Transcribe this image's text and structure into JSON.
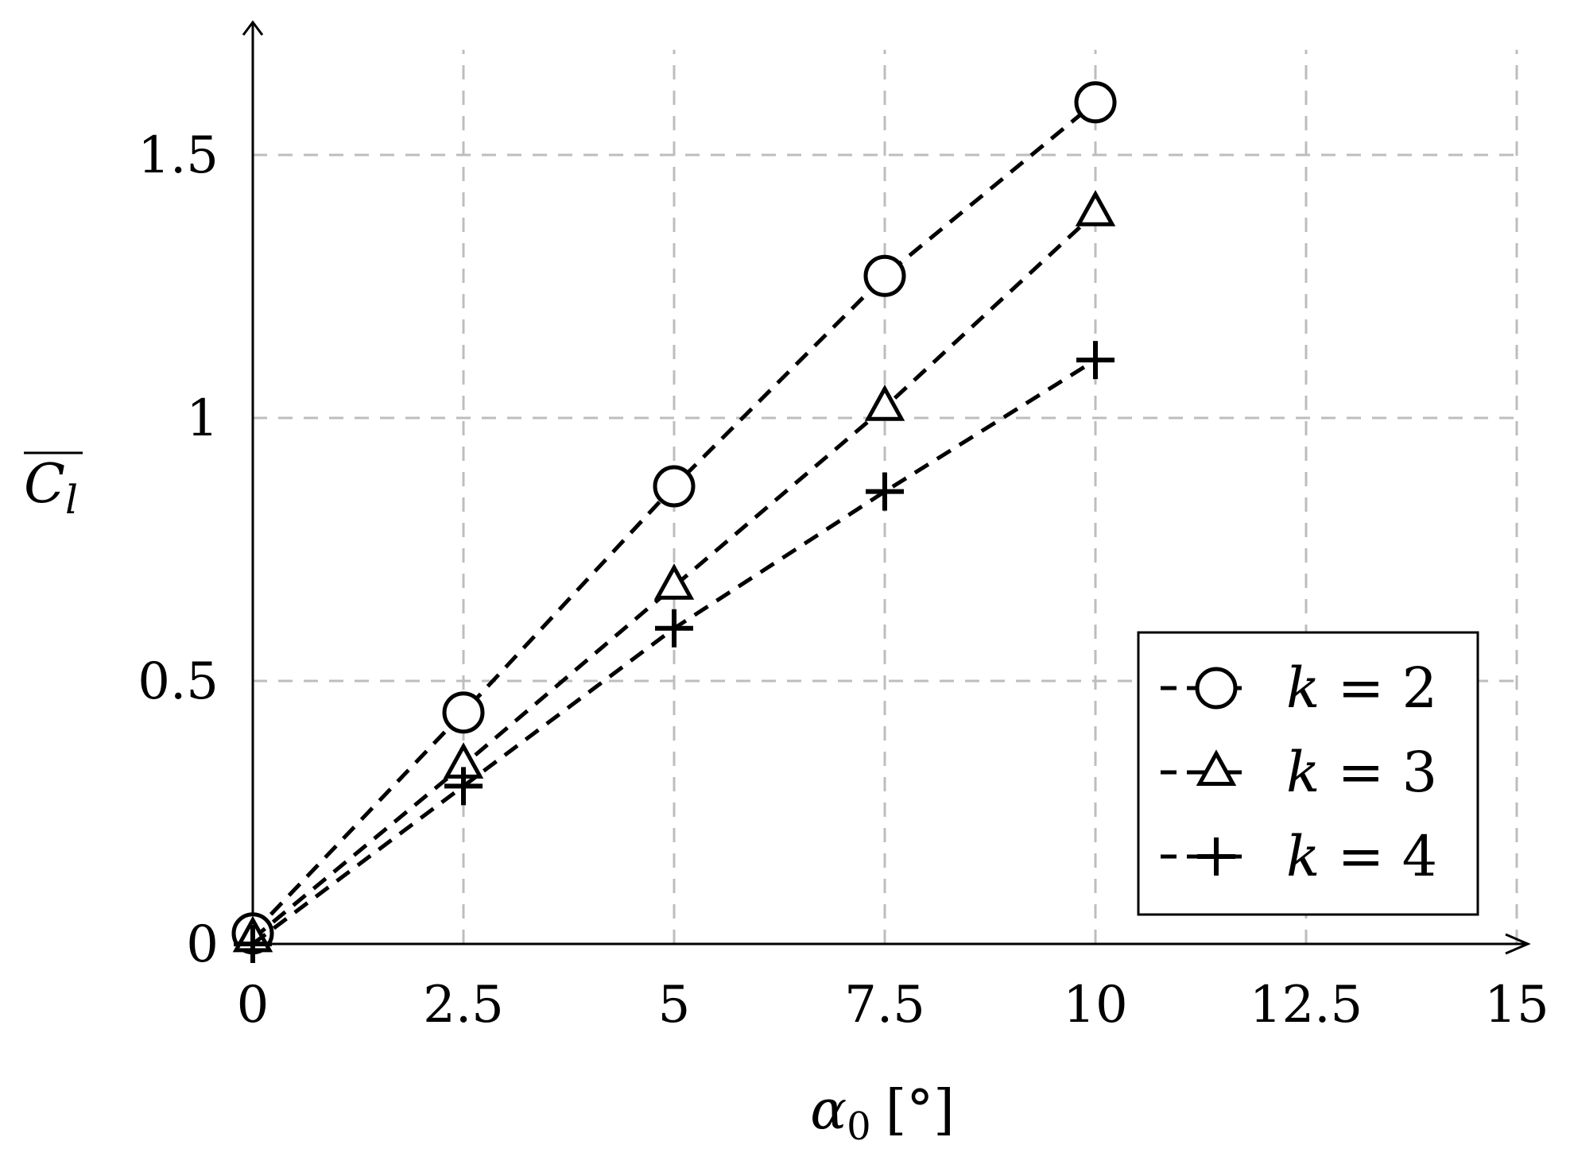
{
  "chart_data": {
    "type": "line",
    "x": [
      0,
      2.5,
      5,
      7.5,
      10
    ],
    "xlim": [
      0,
      15
    ],
    "ylim": [
      0,
      1.7
    ],
    "xticks": [
      0,
      2.5,
      5,
      7.5,
      10,
      12.5,
      15
    ],
    "yticks": [
      0,
      0.5,
      1,
      1.5
    ],
    "xtick_labels": [
      "0",
      "2.5",
      "5",
      "7.5",
      "10",
      "12.5",
      "15"
    ],
    "ytick_labels": [
      "0",
      "0.5",
      "1",
      "1.5"
    ],
    "xlabel_symbol": "α",
    "xlabel_sub": "0",
    "xlabel_unit": "[°]",
    "ylabel_main": "C",
    "ylabel_sub": "l",
    "grid": true,
    "legend_position": "bottom-right",
    "series": [
      {
        "name": "k = 2",
        "var": "k",
        "eq": " = 2",
        "marker": "circle",
        "values": [
          0.02,
          0.44,
          0.87,
          1.27,
          1.6
        ]
      },
      {
        "name": "k = 3",
        "var": "k",
        "eq": " = 3",
        "marker": "triangle",
        "values": [
          0.01,
          0.34,
          0.68,
          1.02,
          1.39
        ]
      },
      {
        "name": "k = 4",
        "var": "k",
        "eq": " = 4",
        "marker": "plus",
        "values": [
          0.0,
          0.3,
          0.6,
          0.86,
          1.11
        ]
      }
    ]
  },
  "colors": {
    "line": "#000000",
    "grid": "#bdbdbd",
    "background": "#ffffff"
  }
}
